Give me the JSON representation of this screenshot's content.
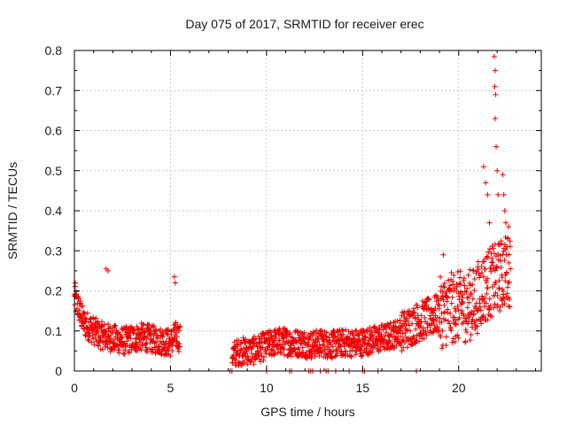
{
  "chart_data": {
    "type": "scatter",
    "title": "Day 075 of 2017, SRMTID for receiver erec",
    "xlabel": "GPS time / hours",
    "ylabel": "SRMTID / TECUs",
    "xlim": [
      0,
      24.3
    ],
    "ylim": [
      0,
      0.8
    ],
    "x_ticks": [
      0,
      5,
      10,
      15,
      20
    ],
    "x_tick_labels": [
      "0",
      "5",
      "10",
      "15",
      "20"
    ],
    "y_ticks": [
      0,
      0.1,
      0.2,
      0.3,
      0.4,
      0.5,
      0.6,
      0.7,
      0.8
    ],
    "y_tick_labels": [
      "0",
      "0.1",
      "0.2",
      "0.3",
      "0.4",
      "0.5",
      "0.6",
      "0.7",
      "0.8"
    ],
    "grid": true,
    "marker": "+",
    "color": "#ee0000",
    "trend": [
      [
        0.0,
        0.18
      ],
      [
        0.2,
        0.16
      ],
      [
        0.5,
        0.12
      ],
      [
        0.9,
        0.105
      ],
      [
        1.3,
        0.09
      ],
      [
        1.7,
        0.085
      ],
      [
        2.1,
        0.08
      ],
      [
        2.6,
        0.075
      ],
      [
        3.0,
        0.08
      ],
      [
        3.5,
        0.085
      ],
      [
        4.0,
        0.08
      ],
      [
        4.5,
        0.075
      ],
      [
        5.0,
        0.07
      ],
      [
        5.3,
        0.09
      ],
      [
        5.5,
        0.08
      ],
      [
        8.2,
        0.04
      ],
      [
        8.8,
        0.05
      ],
      [
        9.3,
        0.05
      ],
      [
        9.8,
        0.06
      ],
      [
        10.3,
        0.07
      ],
      [
        10.8,
        0.075
      ],
      [
        11.3,
        0.07
      ],
      [
        11.8,
        0.07
      ],
      [
        12.3,
        0.065
      ],
      [
        12.8,
        0.07
      ],
      [
        13.3,
        0.065
      ],
      [
        13.8,
        0.07
      ],
      [
        14.3,
        0.07
      ],
      [
        14.8,
        0.07
      ],
      [
        15.3,
        0.075
      ],
      [
        15.8,
        0.08
      ],
      [
        16.3,
        0.085
      ],
      [
        16.8,
        0.095
      ],
      [
        17.3,
        0.105
      ],
      [
        17.8,
        0.12
      ],
      [
        18.3,
        0.13
      ],
      [
        18.8,
        0.14
      ],
      [
        19.3,
        0.15
      ],
      [
        19.8,
        0.16
      ],
      [
        20.3,
        0.16
      ],
      [
        20.8,
        0.17
      ],
      [
        21.2,
        0.2
      ],
      [
        21.6,
        0.22
      ],
      [
        22.0,
        0.23
      ],
      [
        22.4,
        0.25
      ],
      [
        22.7,
        0.25
      ]
    ],
    "notable_points": [
      [
        0.05,
        0.22
      ],
      [
        1.65,
        0.255
      ],
      [
        1.75,
        0.25
      ],
      [
        5.2,
        0.235
      ],
      [
        5.25,
        0.22
      ],
      [
        19.2,
        0.29
      ],
      [
        21.3,
        0.51
      ],
      [
        21.4,
        0.47
      ],
      [
        21.5,
        0.44
      ],
      [
        21.6,
        0.37
      ],
      [
        21.85,
        0.785
      ],
      [
        21.9,
        0.75
      ],
      [
        21.88,
        0.71
      ],
      [
        21.92,
        0.69
      ],
      [
        21.9,
        0.63
      ],
      [
        21.95,
        0.56
      ],
      [
        22.0,
        0.5
      ],
      [
        22.05,
        0.44
      ],
      [
        22.3,
        0.49
      ],
      [
        22.35,
        0.44
      ],
      [
        22.4,
        0.4
      ],
      [
        22.45,
        0.37
      ],
      [
        22.6,
        0.36
      ],
      [
        22.55,
        0.33
      ]
    ],
    "zero_points_x": [
      8.1,
      8.2,
      10.0,
      11.2,
      11.3,
      12.2,
      12.3,
      12.4,
      12.8,
      13.1,
      13.2,
      13.6,
      14.3,
      15.0,
      15.1,
      15.8,
      17.8
    ]
  }
}
